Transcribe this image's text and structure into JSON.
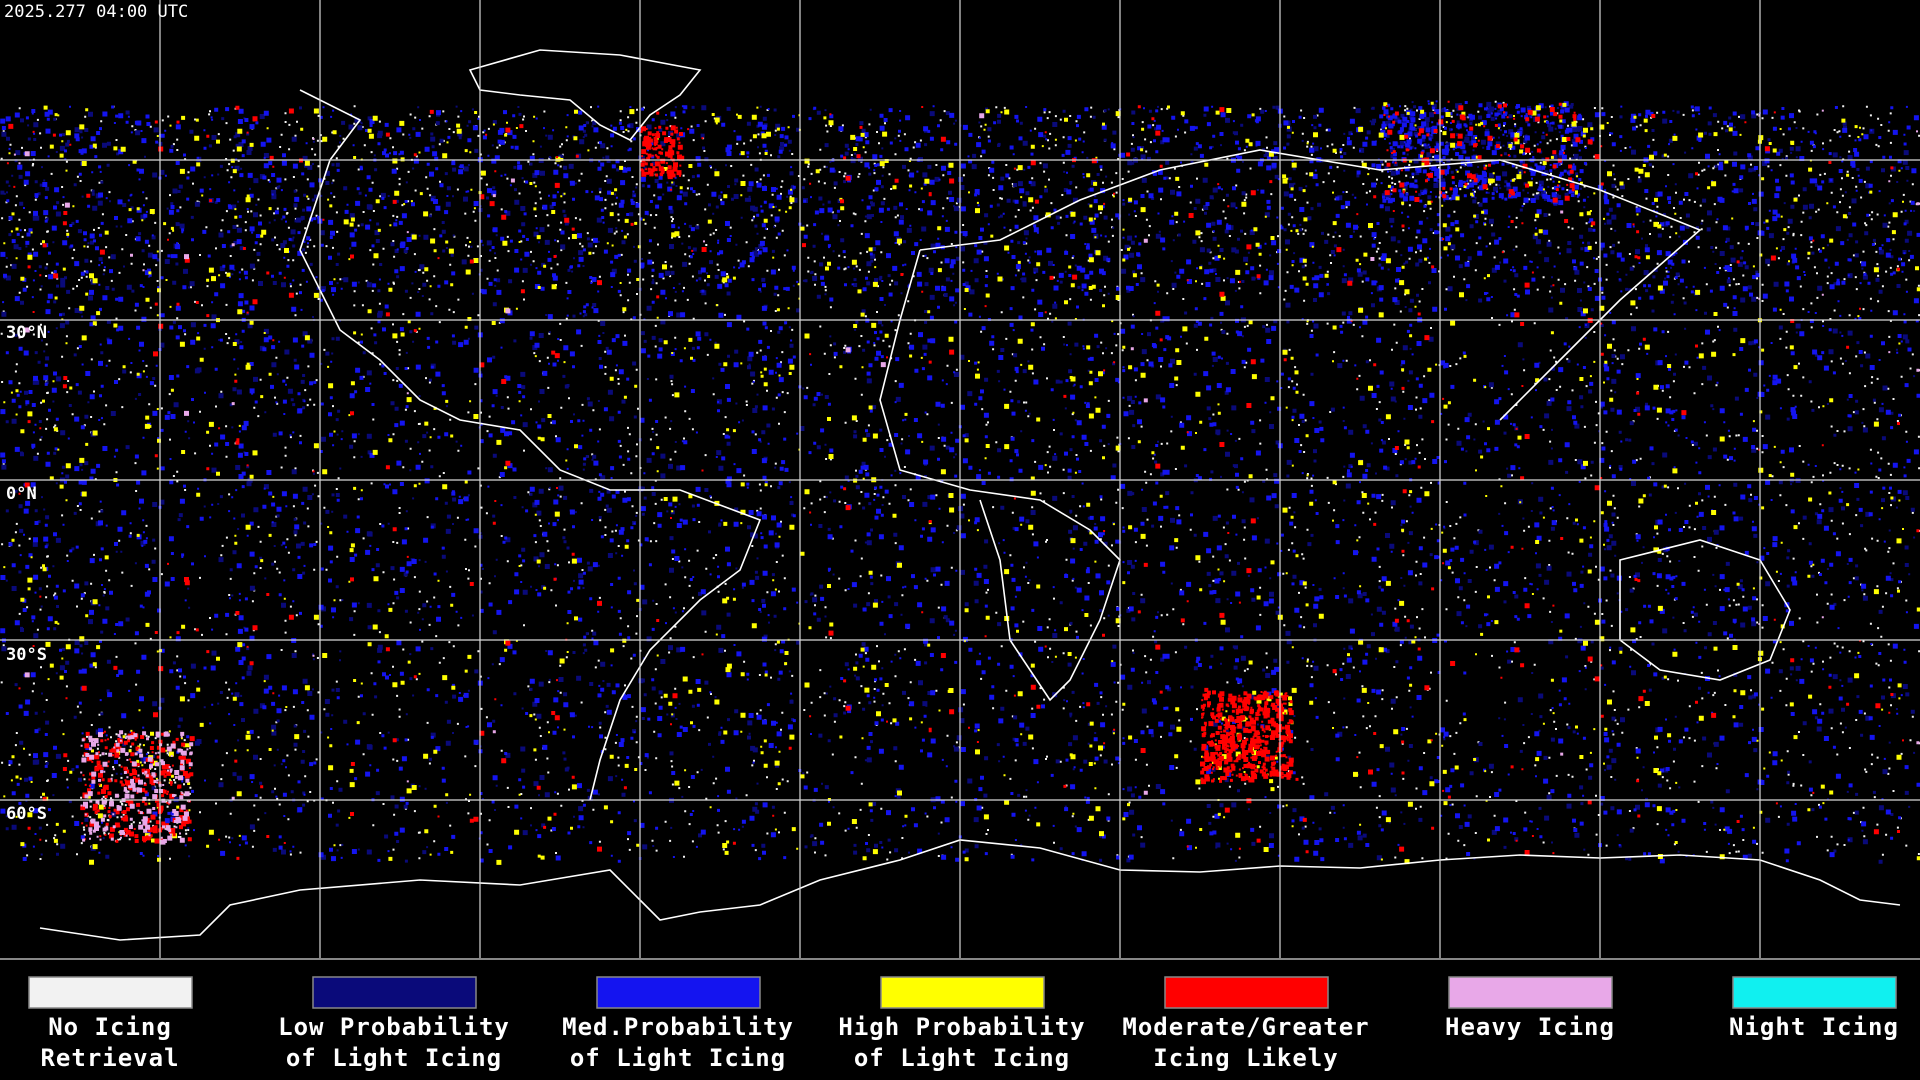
{
  "header": {
    "timestamp": "2025.277 04:00 UTC"
  },
  "map": {
    "lat_labels": [
      "30°N",
      "0°N",
      "30°S",
      "60°S"
    ]
  },
  "legend": {
    "items": [
      {
        "lines": [
          "No Icing",
          "Retrieval"
        ],
        "color": "#f2f2f2"
      },
      {
        "lines": [
          "Low Probability",
          "of Light Icing"
        ],
        "color": "#0a0a7a"
      },
      {
        "lines": [
          "Med.Probability",
          "of Light Icing"
        ],
        "color": "#1414f0"
      },
      {
        "lines": [
          "High Probability",
          "of Light Icing"
        ],
        "color": "#ffff00"
      },
      {
        "lines": [
          "Moderate/Greater",
          "Icing Likely"
        ],
        "color": "#ff0000"
      },
      {
        "lines": [
          "Heavy Icing"
        ],
        "color": "#e8a8e8"
      },
      {
        "lines": [
          "Night Icing"
        ],
        "color": "#10f0f0"
      }
    ]
  }
}
